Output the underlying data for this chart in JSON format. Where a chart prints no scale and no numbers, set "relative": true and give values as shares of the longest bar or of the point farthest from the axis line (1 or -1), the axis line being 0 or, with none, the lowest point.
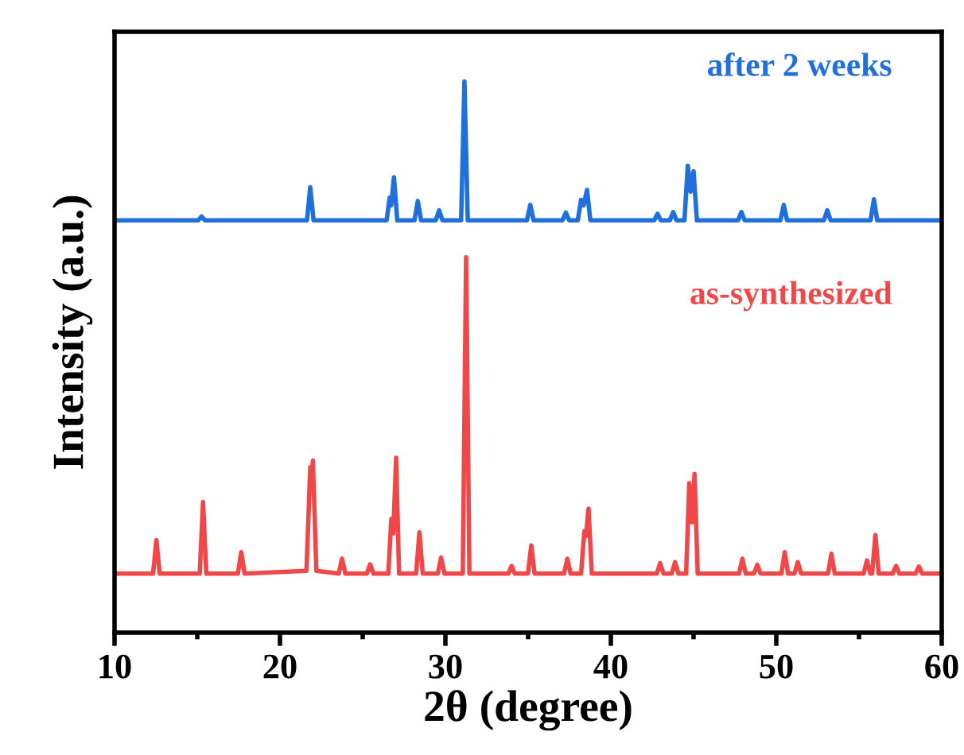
{
  "chart_data": {
    "type": "line",
    "relative": true,
    "xlabel": "2θ (degree)",
    "ylabel": "Intensity (a.u.)",
    "xlim": [
      10,
      60
    ],
    "xticks": [
      10,
      20,
      30,
      40,
      50,
      60
    ],
    "tick_labels": "x",
    "grid": false,
    "legend": false,
    "series": [
      {
        "name": "after 2 weeks",
        "color": "#1f6fdc",
        "x": [
          10,
          15.06,
          15.26,
          15.46,
          21.63,
          21.83,
          22.03,
          26.45,
          26.63,
          26.72,
          26.89,
          27.09,
          28.13,
          28.33,
          28.53,
          29.42,
          29.62,
          29.82,
          30.95,
          31.15,
          31.35,
          34.93,
          35.13,
          35.33,
          37.08,
          37.28,
          37.48,
          38.0,
          38.2,
          38.35,
          38.56,
          38.76,
          42.62,
          42.82,
          43.02,
          43.57,
          43.77,
          43.97,
          44.45,
          44.65,
          44.82,
          45.0,
          45.2,
          47.69,
          47.89,
          48.09,
          50.25,
          50.45,
          50.65,
          52.88,
          53.08,
          53.28,
          55.7,
          55.9,
          56.1,
          60
        ],
        "values": [
          0.748,
          0.748,
          0.755,
          0.748,
          0.748,
          0.808,
          0.748,
          0.748,
          0.789,
          0.775,
          0.826,
          0.748,
          0.748,
          0.783,
          0.748,
          0.748,
          0.766,
          0.748,
          0.748,
          1,
          0.748,
          0.748,
          0.776,
          0.748,
          0.748,
          0.762,
          0.748,
          0.748,
          0.785,
          0.775,
          0.803,
          0.748,
          0.748,
          0.76,
          0.748,
          0.748,
          0.763,
          0.748,
          0.748,
          0.847,
          0.8,
          0.837,
          0.748,
          0.748,
          0.763,
          0.748,
          0.748,
          0.776,
          0.748,
          0.748,
          0.766,
          0.748,
          0.748,
          0.786,
          0.748,
          0.748
        ]
      },
      {
        "name": "as-synthesized",
        "color": "#f04848",
        "x": [
          10,
          12.33,
          12.53,
          12.73,
          15.15,
          15.35,
          15.55,
          17.46,
          17.66,
          17.86,
          21.6,
          21.83,
          21.91,
          21.99,
          22.2,
          23.55,
          23.75,
          23.95,
          25.25,
          25.45,
          25.65,
          26.55,
          26.73,
          26.85,
          27.02,
          27.2,
          28.23,
          28.43,
          28.63,
          29.54,
          29.74,
          29.94,
          31.05,
          31.25,
          31.45,
          33.8,
          34.0,
          34.2,
          34.99,
          35.19,
          35.39,
          37.17,
          37.37,
          37.57,
          38.2,
          38.4,
          38.5,
          38.65,
          38.85,
          42.78,
          42.98,
          43.18,
          43.68,
          43.88,
          44.08,
          44.55,
          44.74,
          44.9,
          45.06,
          45.25,
          47.75,
          47.95,
          48.15,
          48.65,
          48.85,
          49.05,
          50.31,
          50.51,
          50.71,
          51.1,
          51.3,
          51.5,
          53.13,
          53.33,
          53.53,
          55.28,
          55.48,
          55.68,
          55.79,
          55.99,
          56.19,
          57.04,
          57.24,
          57.44,
          58.42,
          58.62,
          58.82,
          60
        ],
        "values": [
          0.107,
          0.107,
          0.168,
          0.107,
          0.107,
          0.237,
          0.107,
          0.107,
          0.146,
          0.107,
          0.112,
          0.3,
          0.28,
          0.312,
          0.112,
          0.107,
          0.134,
          0.107,
          0.107,
          0.124,
          0.107,
          0.107,
          0.206,
          0.18,
          0.317,
          0.107,
          0.107,
          0.182,
          0.107,
          0.107,
          0.136,
          0.107,
          0.107,
          0.681,
          0.107,
          0.107,
          0.121,
          0.107,
          0.107,
          0.158,
          0.107,
          0.107,
          0.134,
          0.107,
          0.107,
          0.184,
          0.175,
          0.225,
          0.107,
          0.107,
          0.126,
          0.107,
          0.107,
          0.128,
          0.107,
          0.107,
          0.271,
          0.2,
          0.288,
          0.107,
          0.107,
          0.134,
          0.107,
          0.107,
          0.123,
          0.107,
          0.107,
          0.146,
          0.107,
          0.107,
          0.128,
          0.107,
          0.107,
          0.143,
          0.107,
          0.107,
          0.131,
          0.107,
          0.107,
          0.177,
          0.107,
          0.107,
          0.121,
          0.107,
          0.107,
          0.12,
          0.107,
          0.107
        ]
      }
    ]
  }
}
